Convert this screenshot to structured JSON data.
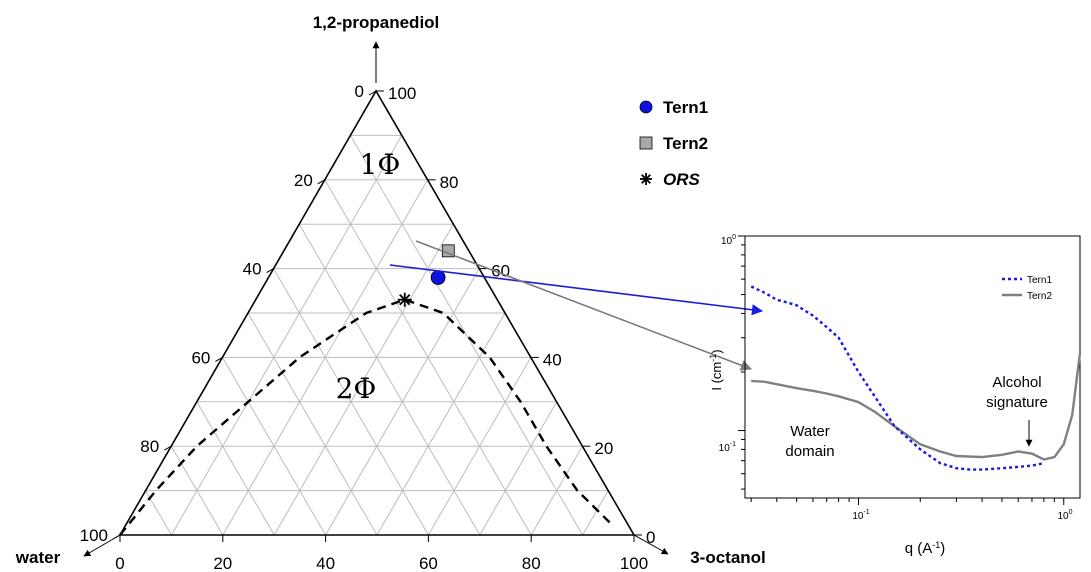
{
  "chart_data": [
    {
      "type": "ternary",
      "components": {
        "top": "1,2-propanediol",
        "left": "water",
        "right": "3-octanol"
      },
      "ticks": [
        0,
        20,
        40,
        60,
        80,
        100
      ],
      "grid": true,
      "grid_step": 10,
      "regions": [
        "1Φ",
        "2Φ"
      ],
      "legend": [
        {
          "name": "Tern1",
          "marker": "circle",
          "color": "#1010e0"
        },
        {
          "name": "Tern2",
          "marker": "square",
          "color": "#a8a8a8"
        },
        {
          "name": "ORS",
          "marker": "asterisk",
          "color": "#000000"
        }
      ],
      "legend_position": "top-right",
      "points": [
        {
          "name": "Tern1",
          "propanediol": 58,
          "octanol": 33
        },
        {
          "name": "Tern2",
          "propanediol": 64,
          "octanol": 32
        },
        {
          "name": "ORS",
          "propanediol": 53,
          "octanol": 29
        }
      ],
      "demixing_line": [
        [
          0,
          0
        ],
        [
          10,
          2
        ],
        [
          20,
          5
        ],
        [
          30,
          10
        ],
        [
          40,
          15
        ],
        [
          50,
          23
        ],
        [
          53,
          29
        ],
        [
          50,
          38
        ],
        [
          40,
          52
        ],
        [
          30,
          63
        ],
        [
          20,
          73
        ],
        [
          10,
          84
        ],
        [
          2,
          95
        ]
      ]
    },
    {
      "type": "line",
      "xlabel": "q (A",
      "xlabel_sup": "-1",
      "xlabel_end": ")",
      "ylabel": "I (cm",
      "ylabel_sup": "-1",
      "ylabel_end": ")",
      "xscale": "log",
      "yscale": "log",
      "xlim": [
        0.028,
        1.2
      ],
      "ylim": [
        0.045,
        1
      ],
      "x_tick_labels": [
        {
          "base": "10",
          "exp": "-1"
        },
        {
          "base": "10",
          "exp": "0"
        }
      ],
      "y_tick_labels": [
        {
          "base": "10",
          "exp": "0"
        },
        {
          "base": "10",
          "exp": "-1"
        }
      ],
      "legend_position": "top-right",
      "series": [
        {
          "name": "Tern1",
          "style": "dotted",
          "color": "#1a1ae6",
          "x": [
            0.03,
            0.035,
            0.04,
            0.045,
            0.05,
            0.06,
            0.07,
            0.08,
            0.1,
            0.12,
            0.15,
            0.2,
            0.25,
            0.3,
            0.35,
            0.4,
            0.5,
            0.6,
            0.7,
            0.8
          ],
          "y": [
            0.55,
            0.51,
            0.47,
            0.455,
            0.44,
            0.39,
            0.34,
            0.3,
            0.2,
            0.15,
            0.105,
            0.08,
            0.068,
            0.064,
            0.063,
            0.063,
            0.064,
            0.065,
            0.066,
            0.068
          ]
        },
        {
          "name": "Tern2",
          "style": "solid",
          "color": "#808080",
          "x": [
            0.03,
            0.035,
            0.04,
            0.05,
            0.06,
            0.07,
            0.08,
            0.1,
            0.12,
            0.15,
            0.2,
            0.25,
            0.3,
            0.4,
            0.5,
            0.6,
            0.7,
            0.8,
            0.9,
            1.0,
            1.1,
            1.2
          ],
          "y": [
            0.18,
            0.178,
            0.173,
            0.165,
            0.16,
            0.155,
            0.15,
            0.14,
            0.125,
            0.105,
            0.085,
            0.078,
            0.074,
            0.073,
            0.075,
            0.078,
            0.076,
            0.071,
            0.073,
            0.085,
            0.12,
            0.25
          ]
        }
      ],
      "annotations": {
        "water_domain": "Water\ndomain",
        "alcohol_signature": "Alcohol\nsignature"
      }
    }
  ]
}
